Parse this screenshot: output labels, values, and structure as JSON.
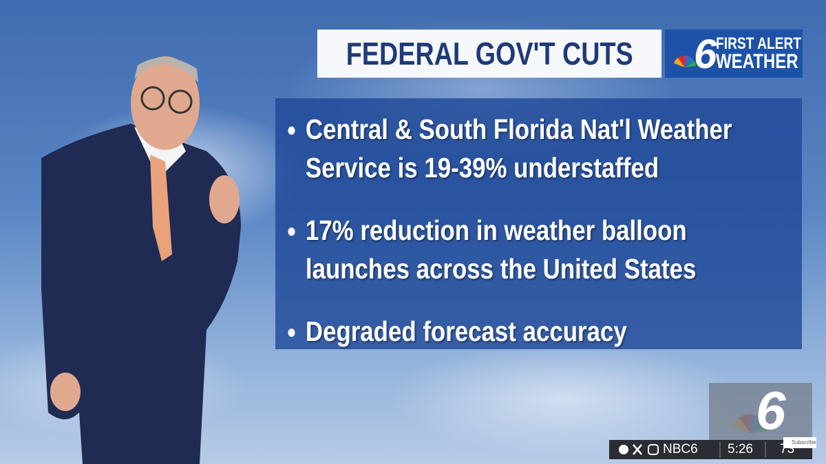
{
  "header": {
    "title": "FEDERAL GOV'T CUTS",
    "logo_number": "6",
    "logo_line1": "FIRST ALERT",
    "logo_line2": "WEATHER"
  },
  "bullets": [
    "Central & South Florida Nat'l Weather Service is 19-39% understaffed",
    "17% reduction in weather balloon launches across the United States",
    "Degraded forecast accuracy"
  ],
  "corner_logo": "6",
  "ticker": {
    "handle": "NBC6",
    "time": "5:26",
    "temperature": "73",
    "subscribe": "Subscribe"
  }
}
